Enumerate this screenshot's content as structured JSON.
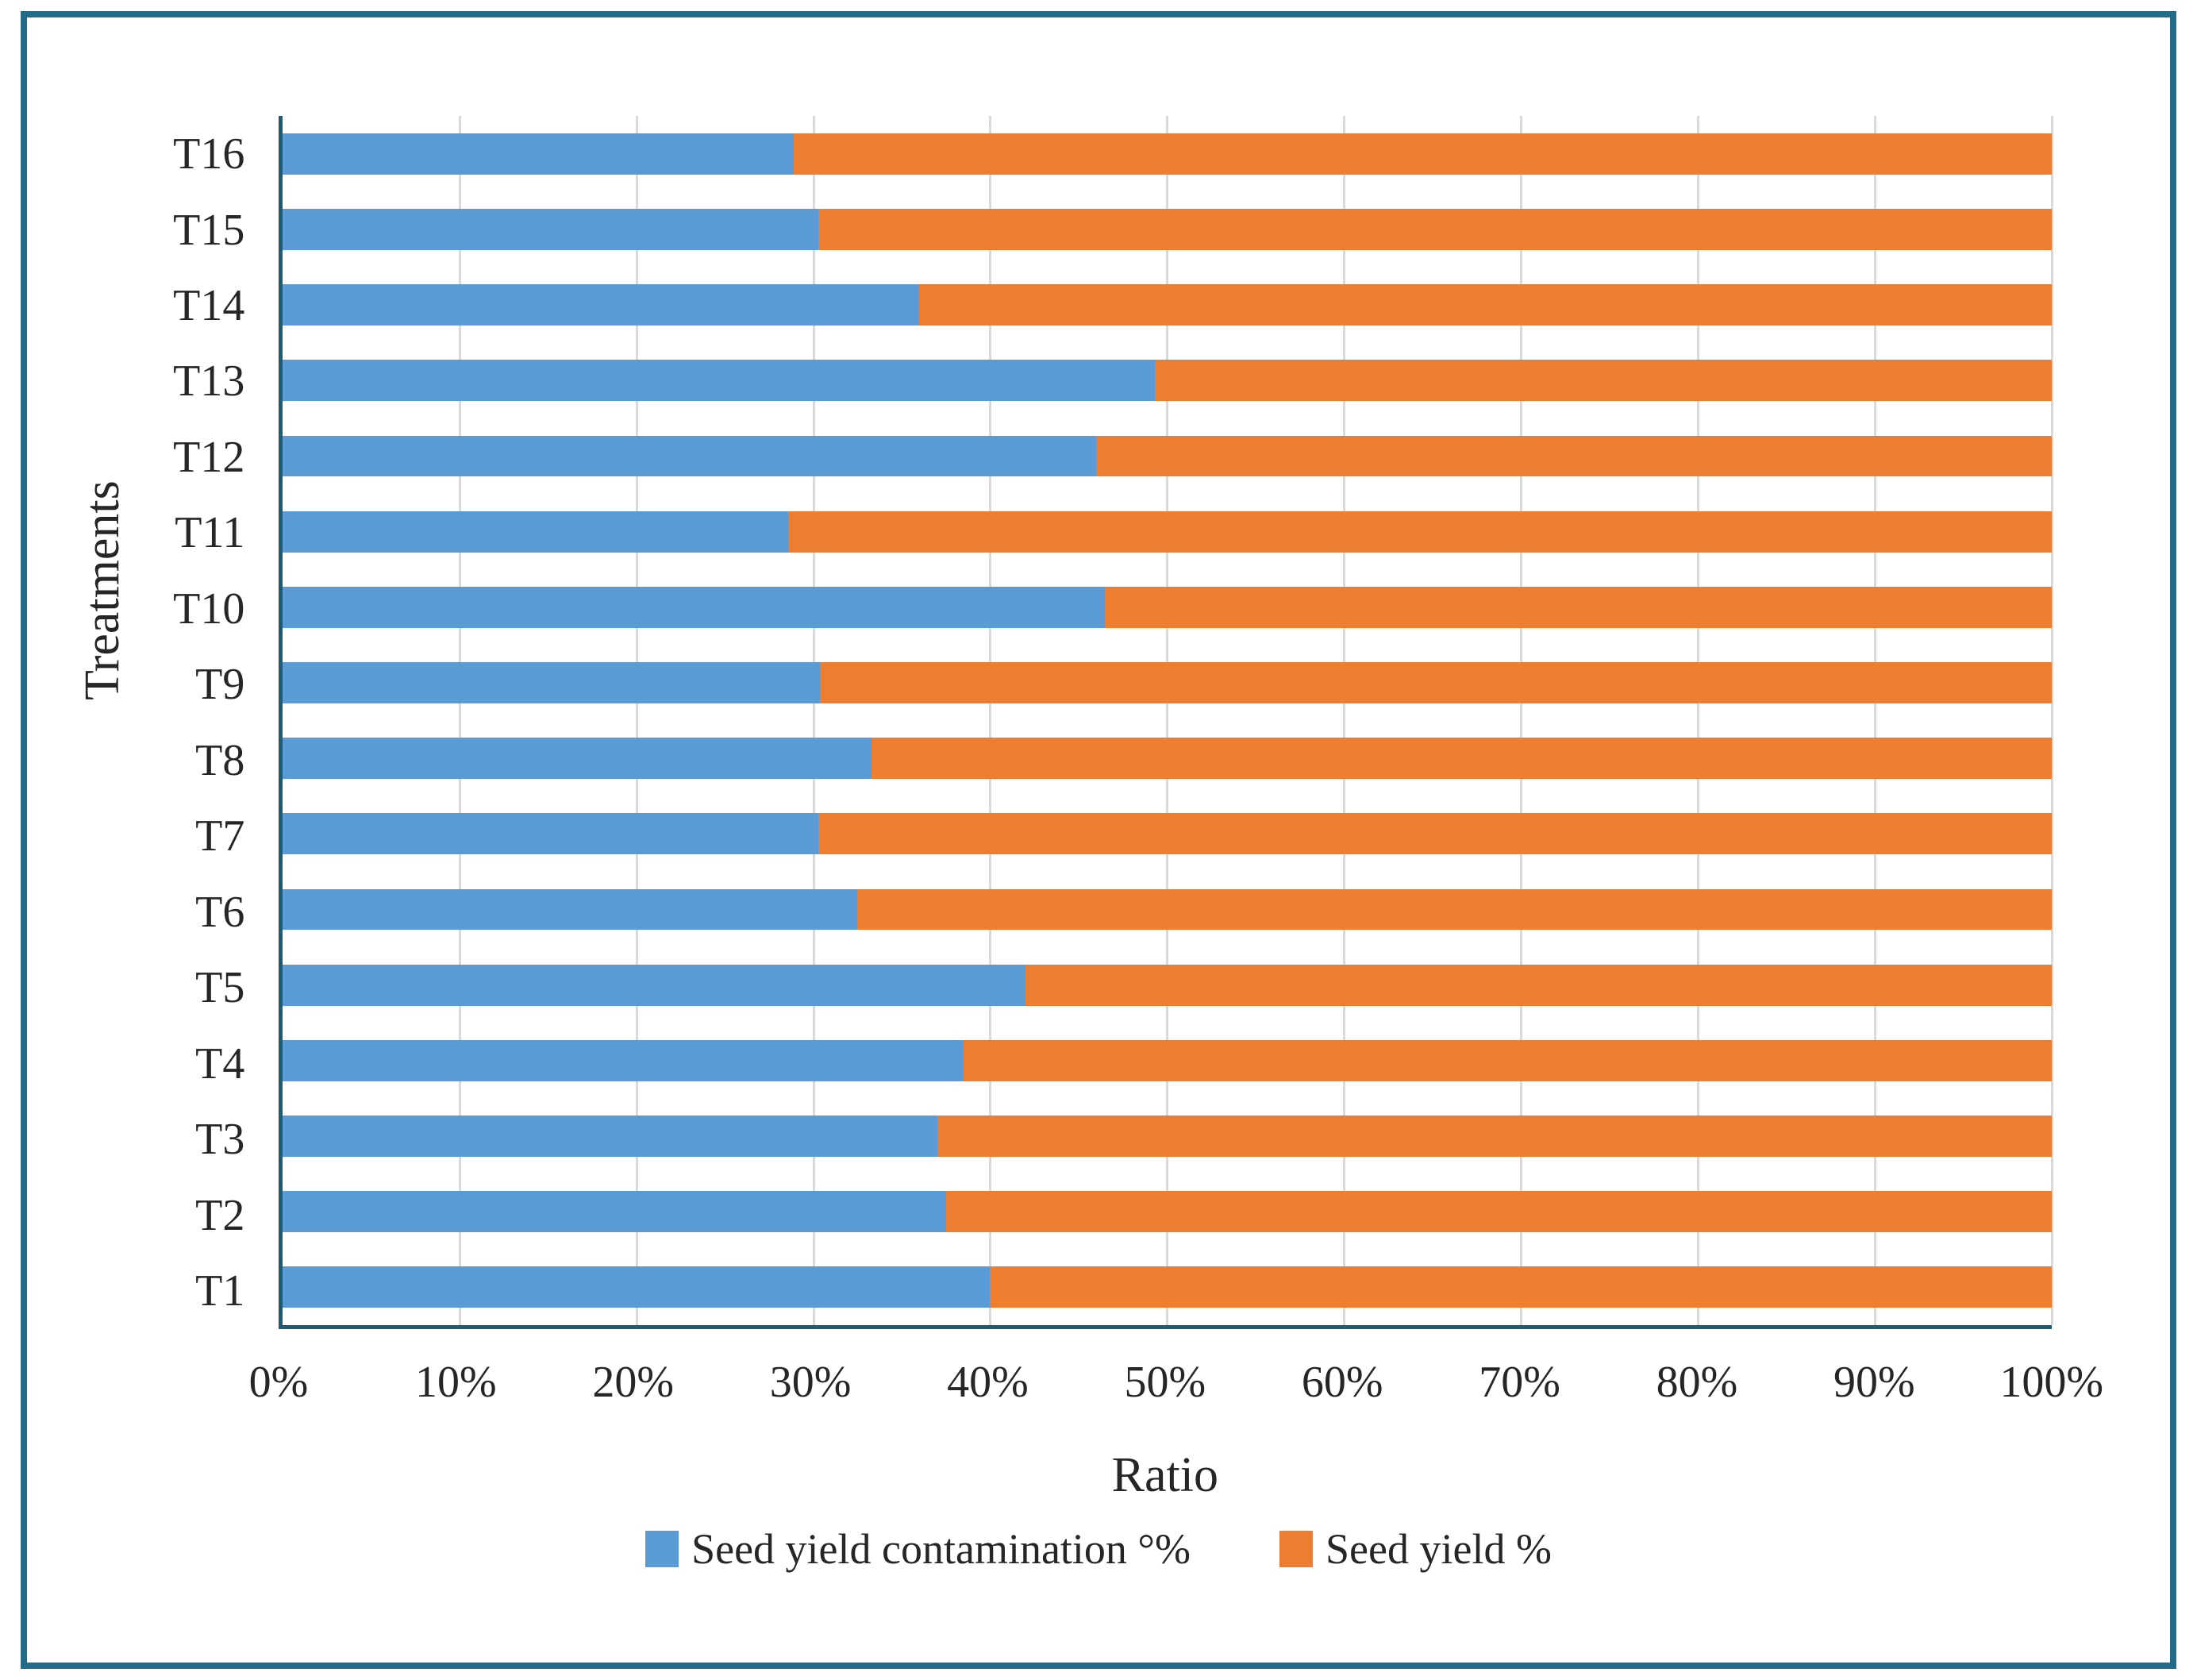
{
  "colors": {
    "series_contamination": "#5b9bd5",
    "series_yield": "#ed7d31",
    "axis_line": "#1d5c75",
    "gridline": "#d9d9d9",
    "frame_border": "#246b89",
    "text": "#303030"
  },
  "chart_data": {
    "type": "bar",
    "orientation": "horizontal",
    "stacked": true,
    "stack_total": 100,
    "grid": "vertical",
    "legend_position": "bottom",
    "xlabel": "Ratio",
    "ylabel": "Treatments",
    "xlim": [
      0,
      100
    ],
    "x_ticks": [
      "0%",
      "10%",
      "20%",
      "30%",
      "40%",
      "50%",
      "60%",
      "70%",
      "80%",
      "90%",
      "100%"
    ],
    "categories": [
      "T1",
      "T2",
      "T3",
      "T4",
      "T5",
      "T6",
      "T7",
      "T8",
      "T9",
      "T10",
      "T11",
      "T12",
      "T13",
      "T14",
      "T15",
      "T16"
    ],
    "category_display_order": "reversed (T16 at top, T1 at bottom)",
    "series": [
      {
        "name": "Seed yield contamination °%",
        "color": "#5b9bd5",
        "values": [
          40,
          37.5,
          37,
          38.5,
          42,
          32.5,
          30.3,
          33.3,
          30.4,
          46.5,
          28.6,
          46,
          49.3,
          36,
          30.3,
          28.9
        ]
      },
      {
        "name": "Seed yield %",
        "color": "#ed7d31",
        "values": [
          60,
          62.5,
          63,
          61.5,
          58,
          67.5,
          69.7,
          66.7,
          69.6,
          53.5,
          71.4,
          54,
          50.7,
          64,
          69.7,
          71.1
        ]
      }
    ]
  }
}
